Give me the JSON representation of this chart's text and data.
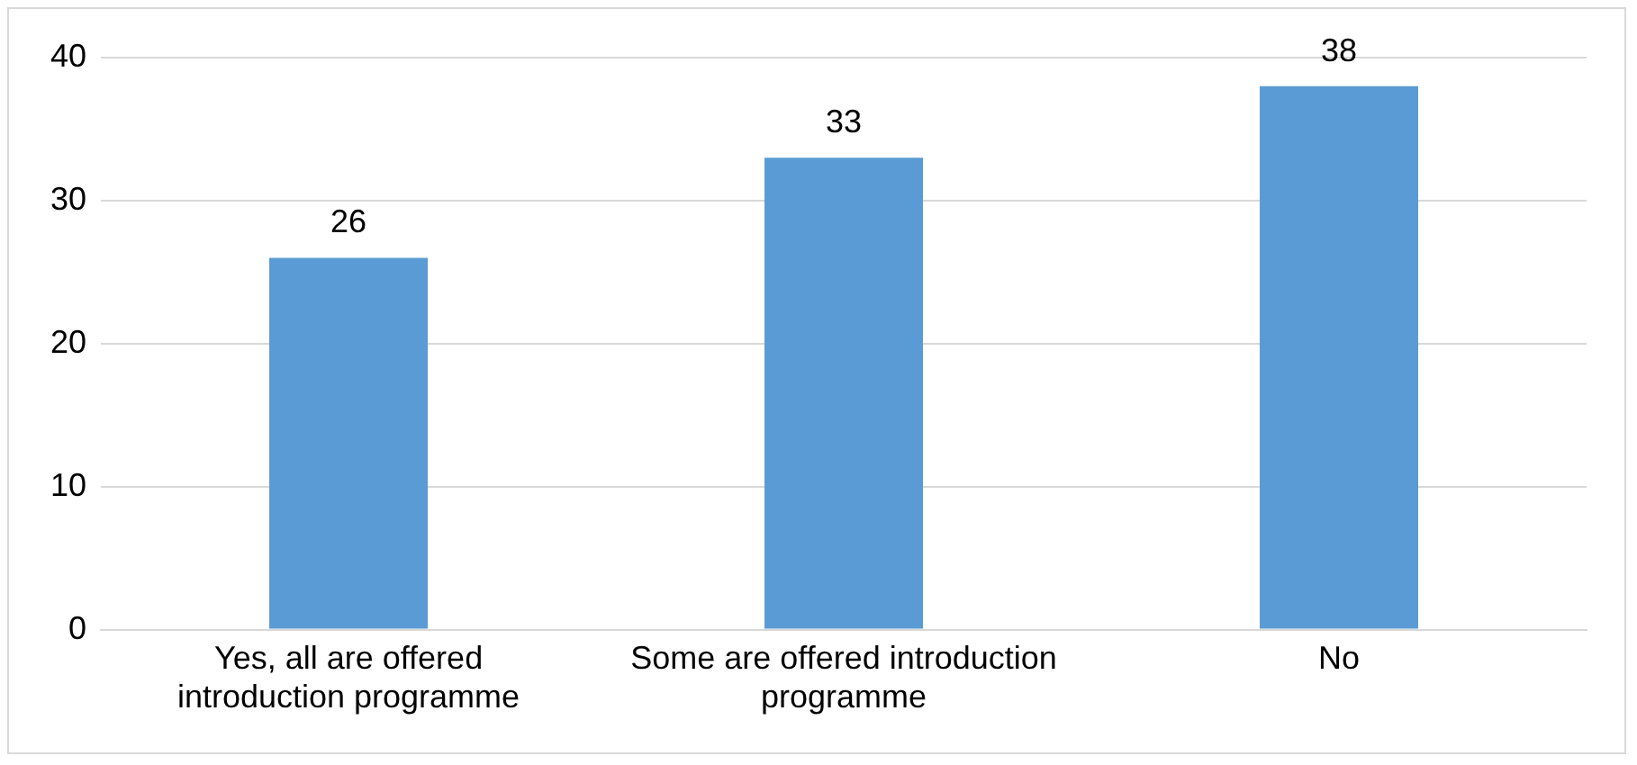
{
  "chart_data": {
    "type": "bar",
    "categories": [
      "Yes, all are offered introduction programme",
      "Some are offered introduction programme",
      "No"
    ],
    "values": [
      26,
      33,
      38
    ],
    "color": "#5b9bd5",
    "ylim": [
      0,
      40
    ],
    "yticks": [
      0,
      10,
      20,
      30,
      40
    ],
    "grid": "y",
    "legend": false,
    "data_labels": true
  }
}
